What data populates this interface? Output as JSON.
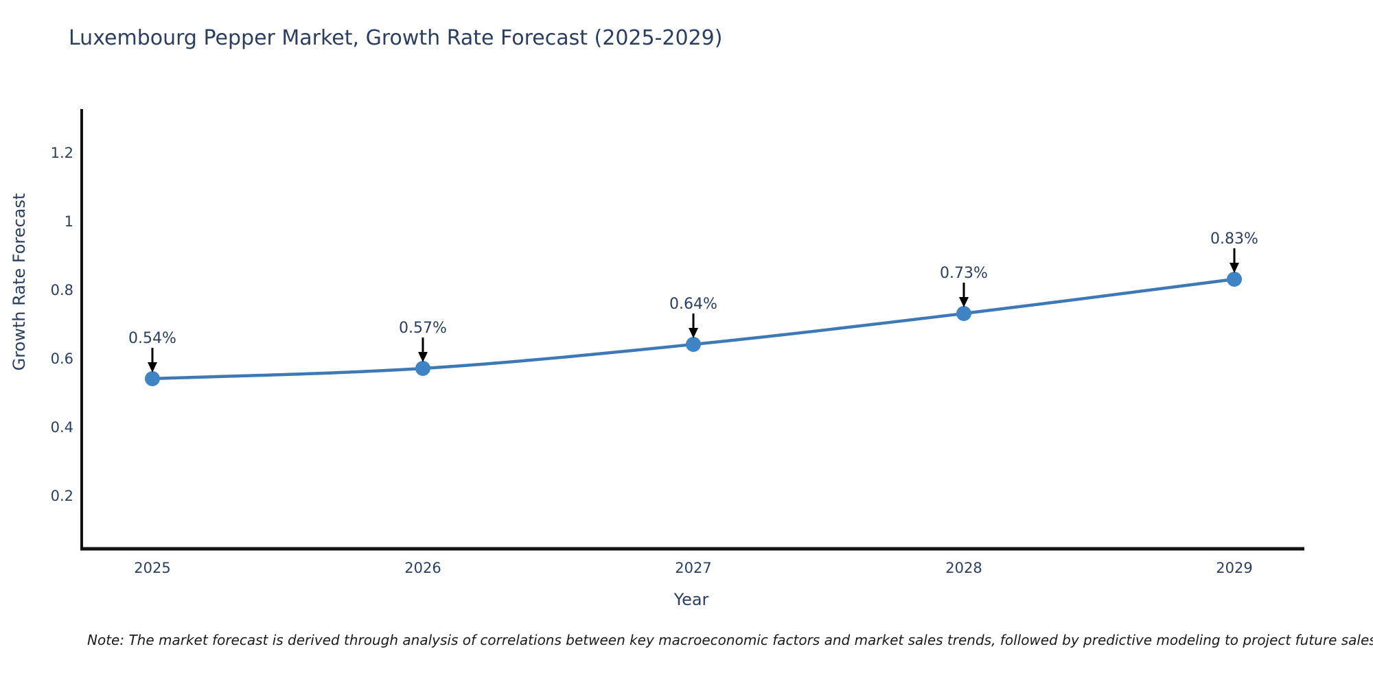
{
  "title": "Luxembourg Pepper Market, Growth Rate Forecast (2025-2029)",
  "note": "Note: The market forecast is derived through analysis of correlations between key macroeconomic factors and market sales trends, followed by predictive modeling to project future sales",
  "colors": {
    "title_text": "#2a3f5f",
    "tick_text": "#2a3f5f",
    "annotation_text": "#2a3f5f",
    "axis_line": "#111111",
    "line": "#3c79b6",
    "marker": "#3f84c4",
    "arrow": "#000000",
    "background": "#ffffff"
  },
  "chart_data": {
    "type": "line",
    "title": "Luxembourg Pepper Market, Growth Rate Forecast (2025-2029)",
    "xlabel": "Year",
    "ylabel": "Growth Rate Forecast",
    "x": [
      2025,
      2026,
      2027,
      2028,
      2029
    ],
    "xtick_labels": [
      "2025",
      "2026",
      "2027",
      "2028",
      "2029"
    ],
    "values": [
      0.54,
      0.57,
      0.64,
      0.73,
      0.83
    ],
    "point_labels": [
      "0.54%",
      "0.57%",
      "0.64%",
      "0.73%",
      "0.83%"
    ],
    "yticks": [
      0.2,
      0.4,
      0.6,
      0.8,
      1,
      1.2
    ],
    "ytick_labels": [
      "0.2",
      "0.4",
      "0.6",
      "0.8",
      "1",
      "1.2"
    ],
    "ylim": [
      0.04,
      1.34
    ],
    "grid": false,
    "legend": "none",
    "line_shape": "spline",
    "annotations": "down-arrow-to-point"
  }
}
